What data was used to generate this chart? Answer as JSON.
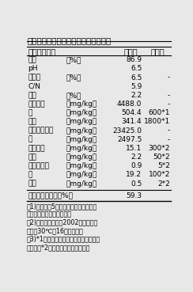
{
  "title": "表１　施用汚泥の組成と窒素無機化率",
  "col_header": [
    "項目（単位）",
    "分析値",
    "上限値"
  ],
  "rows": [
    [
      "水分",
      "（%）",
      "86.9",
      ""
    ],
    [
      "pH",
      "",
      "6.5",
      ""
    ],
    [
      "全窒素",
      "（%）",
      "6.5",
      "-"
    ],
    [
      "C/N",
      "",
      "5.9",
      ""
    ],
    [
      "リン",
      "（%）",
      "2.2",
      "-"
    ],
    [
      "カリウム",
      "（mg/kg）",
      "4488.0",
      "-"
    ],
    [
      "銅",
      "（mg/kg）",
      "504.4",
      "600*1"
    ],
    [
      "亜鉛",
      "（mg/kg）",
      "341.4",
      "1800*1"
    ],
    [
      "アルミニウム",
      "（mg/kg）",
      "23425.0",
      "-"
    ],
    [
      "鉄",
      "（mg/kg）",
      "2497.5",
      "-"
    ],
    [
      "ニッケル",
      "（mg/kg）",
      "15.1",
      "300*2"
    ],
    [
      "ヒ素",
      "（mg/kg）",
      "2.2",
      "50*2"
    ],
    [
      "カドミウム",
      "（mg/kg）",
      "0.9",
      "5*2"
    ],
    [
      "鉛",
      "（mg/kg）",
      "19.2",
      "100*2"
    ],
    [
      "水銀",
      "（mg/kg）",
      "0.5",
      "2*2"
    ]
  ],
  "footer": [
    "窒素無機化率　（%）",
    "59.3"
  ],
  "notes": [
    "注1)分析値は5年間の平均値（水分以外",
    "　　は乾物当たりの数値）",
    "　2)窒素無機化率は2002年の測定値",
    "　　（30℃で16週間静置）",
    "　3)*1は全国農業協同組合中央会の推奨",
    "　　値，*2は肥料取締法の公定規格"
  ],
  "bg_color": "#e8e8e8",
  "text_color": "#000000",
  "title_fontsize": 7.5,
  "header_fontsize": 7.0,
  "data_fontsize": 6.5,
  "note_fontsize": 5.8
}
